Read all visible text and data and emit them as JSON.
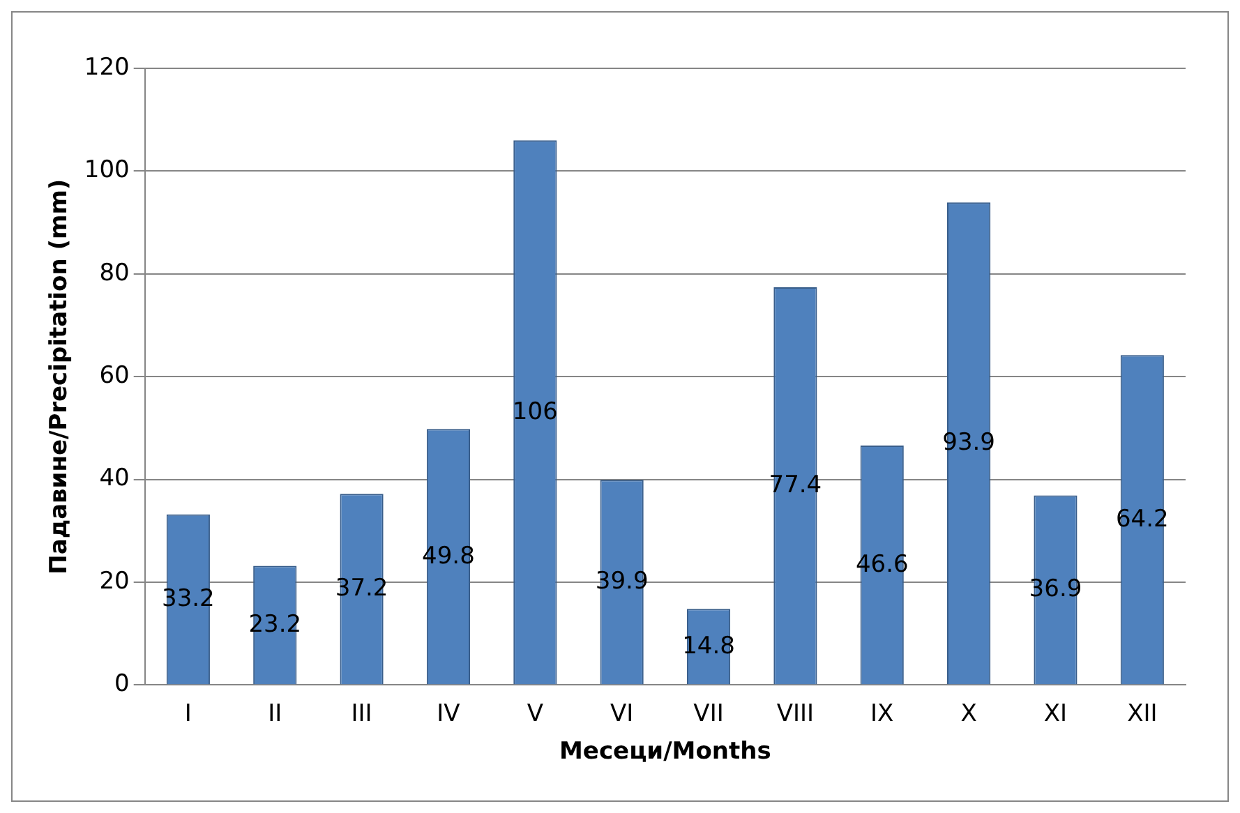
{
  "chart_data": {
    "type": "bar",
    "xlabel": "Месеци/Months",
    "ylabel": "Падавине/Precipitation (mm)",
    "categories": [
      "I",
      "II",
      "III",
      "IV",
      "V",
      "VI",
      "VII",
      "VIII",
      "IX",
      "X",
      "XI",
      "XII"
    ],
    "values": [
      33.2,
      23.2,
      37.2,
      49.8,
      106,
      39.9,
      14.8,
      77.4,
      46.6,
      93.9,
      36.9,
      64.2
    ],
    "color": "#4f81bd",
    "ylim": [
      0,
      120
    ],
    "yticks": [
      0,
      20,
      40,
      60,
      80,
      100,
      120
    ],
    "grid": "y",
    "data_labels": true
  }
}
